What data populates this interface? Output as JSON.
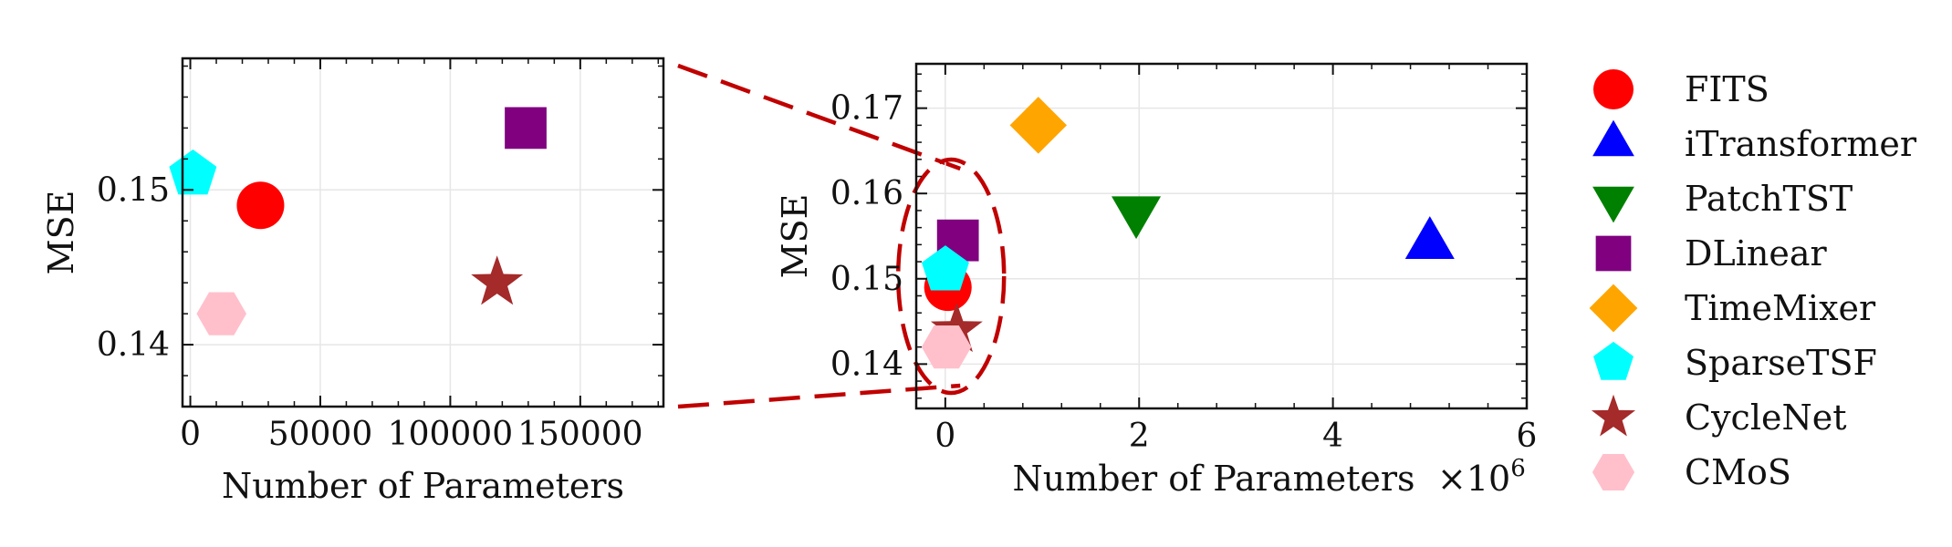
{
  "figure": {
    "left_panel": {
      "xlabel": "Number of Parameters",
      "ylabel": "MSE"
    },
    "right_panel": {
      "xlabel": "Number of Parameters",
      "ylabel": "MSE",
      "x_offset_label_base": "×10",
      "x_offset_label_exp": "6"
    }
  },
  "chart_data": [
    {
      "type": "scatter",
      "panel": "zoomed",
      "xlabel": "Number of Parameters",
      "ylabel": "MSE",
      "xlim": [
        -3000,
        182000
      ],
      "ylim": [
        0.136,
        0.1585
      ],
      "xticks": [
        0,
        50000,
        100000,
        150000
      ],
      "xtick_labels": [
        "0",
        "50000",
        "100000",
        "150000"
      ],
      "yticks": [
        0.14,
        0.15
      ],
      "ytick_labels": [
        "0.14",
        "0.15"
      ],
      "grid": true,
      "series": [
        {
          "name": "FITS",
          "marker": "circle",
          "color": "#ff0000",
          "x": [
            27000
          ],
          "y": [
            0.149
          ]
        },
        {
          "name": "DLinear",
          "marker": "square",
          "color": "#800080",
          "x": [
            129000
          ],
          "y": [
            0.154
          ]
        },
        {
          "name": "SparseTSF",
          "marker": "pentagon",
          "color": "#00ffff",
          "x": [
            1000
          ],
          "y": [
            0.151
          ]
        },
        {
          "name": "CycleNet",
          "marker": "star",
          "color": "#a52a2a",
          "x": [
            118000
          ],
          "y": [
            0.144
          ]
        },
        {
          "name": "CMoS",
          "marker": "hexagon",
          "color": "#ffc0cb",
          "x": [
            12000
          ],
          "y": [
            0.142
          ]
        }
      ]
    },
    {
      "type": "scatter",
      "panel": "full",
      "xlabel": "Number of Parameters",
      "ylabel": "MSE",
      "x_scale_note": "×10^6",
      "xlim": [
        -0.3,
        6.0
      ],
      "ylim": [
        0.1348,
        0.1752
      ],
      "xticks": [
        0,
        2,
        4,
        6
      ],
      "xtick_labels": [
        "0",
        "2",
        "4",
        "6"
      ],
      "yticks": [
        0.14,
        0.15,
        0.16,
        0.17
      ],
      "ytick_labels": [
        "0.14",
        "0.15",
        "0.16",
        "0.17"
      ],
      "grid": true,
      "series": [
        {
          "name": "FITS",
          "marker": "circle",
          "color": "#ff0000",
          "x": [
            0.027
          ],
          "y": [
            0.149
          ]
        },
        {
          "name": "iTransformer",
          "marker": "triangle-up",
          "color": "#0000ff",
          "x": [
            5.0
          ],
          "y": [
            0.154
          ]
        },
        {
          "name": "PatchTST",
          "marker": "triangle-down",
          "color": "#008000",
          "x": [
            1.97
          ],
          "y": [
            0.158
          ]
        },
        {
          "name": "DLinear",
          "marker": "square",
          "color": "#800080",
          "x": [
            0.13
          ],
          "y": [
            0.1545
          ]
        },
        {
          "name": "TimeMixer",
          "marker": "diamond",
          "color": "#ffa500",
          "x": [
            0.96
          ],
          "y": [
            0.168
          ]
        },
        {
          "name": "SparseTSF",
          "marker": "pentagon",
          "color": "#00ffff",
          "x": [
            0.001
          ],
          "y": [
            0.151
          ]
        },
        {
          "name": "CycleNet",
          "marker": "star",
          "color": "#a52a2a",
          "x": [
            0.118
          ],
          "y": [
            0.144
          ]
        },
        {
          "name": "CMoS",
          "marker": "hexagon",
          "color": "#ffc0cb",
          "x": [
            0.012
          ],
          "y": [
            0.142
          ]
        }
      ]
    }
  ],
  "legend": {
    "placement": "right",
    "entries": [
      {
        "label": "FITS",
        "marker": "circle",
        "color": "#ff0000"
      },
      {
        "label": "iTransformer",
        "marker": "triangle-up",
        "color": "#0000ff"
      },
      {
        "label": "PatchTST",
        "marker": "triangle-down",
        "color": "#008000"
      },
      {
        "label": "DLinear",
        "marker": "square",
        "color": "#800080"
      },
      {
        "label": "TimeMixer",
        "marker": "diamond",
        "color": "#ffa500"
      },
      {
        "label": "SparseTSF",
        "marker": "pentagon",
        "color": "#00ffff"
      },
      {
        "label": "CycleNet",
        "marker": "star",
        "color": "#a52a2a"
      },
      {
        "label": "CMoS",
        "marker": "hexagon",
        "color": "#ffc0cb"
      }
    ]
  },
  "zoom_indicator_color": "#c00000"
}
